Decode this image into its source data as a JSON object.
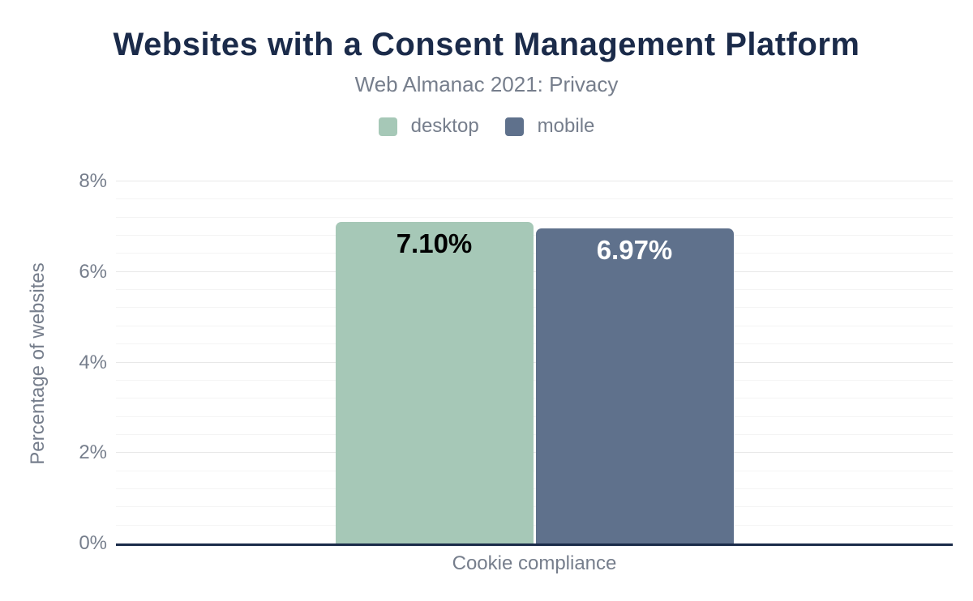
{
  "chart_data": {
    "type": "bar",
    "title": "Websites with a Consent Management Platform",
    "subtitle": "Web Almanac 2021: Privacy",
    "categories": [
      "Cookie compliance"
    ],
    "series": [
      {
        "name": "desktop",
        "values": [
          7.1
        ],
        "data_labels": [
          "7.10%"
        ],
        "color": "#a6c8b7",
        "data_label_color": "#000000"
      },
      {
        "name": "mobile",
        "values": [
          6.97
        ],
        "data_labels": [
          "6.97%"
        ],
        "color": "#5f718c",
        "data_label_color": "#ffffff"
      }
    ],
    "xlabel": "Cookie compliance",
    "ylabel": "Percentage of websites",
    "ylim": [
      0,
      8
    ],
    "yticks": [
      {
        "value": 0,
        "label": "0%"
      },
      {
        "value": 2,
        "label": "2%"
      },
      {
        "value": 4,
        "label": "4%"
      },
      {
        "value": 6,
        "label": "6%"
      },
      {
        "value": 8,
        "label": "8%"
      }
    ],
    "grid": {
      "major_step": 2,
      "minor_step": 0.4,
      "major_color": "#e8e8e8",
      "minor_color": "#f4f4f4"
    },
    "legend_position": "top",
    "colors": {
      "title": "#1b2b4a",
      "text_gray": "#767e8c",
      "axis_line": "#1a2b49",
      "background": "#ffffff"
    }
  }
}
